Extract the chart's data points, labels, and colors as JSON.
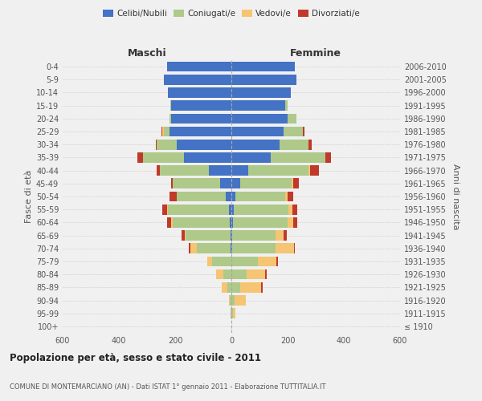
{
  "age_groups": [
    "100+",
    "95-99",
    "90-94",
    "85-89",
    "80-84",
    "75-79",
    "70-74",
    "65-69",
    "60-64",
    "55-59",
    "50-54",
    "45-49",
    "40-44",
    "35-39",
    "30-34",
    "25-29",
    "20-24",
    "15-19",
    "10-14",
    "5-9",
    "0-4"
  ],
  "birth_years": [
    "≤ 1910",
    "1911-1915",
    "1916-1920",
    "1921-1925",
    "1926-1930",
    "1931-1935",
    "1936-1940",
    "1941-1945",
    "1946-1950",
    "1951-1955",
    "1956-1960",
    "1961-1965",
    "1966-1970",
    "1971-1975",
    "1976-1980",
    "1981-1985",
    "1986-1990",
    "1991-1995",
    "1996-2000",
    "2001-2005",
    "2006-2010"
  ],
  "males": {
    "celibe": [
      0,
      0,
      0,
      0,
      0,
      0,
      2,
      2,
      5,
      10,
      20,
      40,
      80,
      170,
      195,
      220,
      215,
      215,
      225,
      240,
      230
    ],
    "coniugato": [
      0,
      2,
      5,
      15,
      30,
      70,
      120,
      160,
      205,
      215,
      175,
      170,
      175,
      145,
      70,
      20,
      5,
      2,
      0,
      0,
      0
    ],
    "vedovo": [
      0,
      2,
      5,
      20,
      25,
      15,
      25,
      5,
      5,
      5,
      0,
      0,
      0,
      0,
      0,
      5,
      0,
      0,
      0,
      0,
      0
    ],
    "divorziato": [
      0,
      0,
      0,
      0,
      0,
      0,
      5,
      10,
      15,
      15,
      25,
      5,
      10,
      20,
      5,
      5,
      0,
      0,
      0,
      0,
      0
    ]
  },
  "females": {
    "nubile": [
      0,
      0,
      0,
      0,
      0,
      0,
      2,
      2,
      5,
      8,
      15,
      30,
      60,
      140,
      170,
      185,
      200,
      190,
      210,
      230,
      225
    ],
    "coniugata": [
      0,
      5,
      10,
      30,
      55,
      95,
      155,
      155,
      195,
      195,
      175,
      185,
      215,
      195,
      105,
      70,
      30,
      10,
      0,
      0,
      0
    ],
    "vedova": [
      0,
      10,
      40,
      75,
      65,
      65,
      65,
      30,
      20,
      15,
      10,
      5,
      5,
      0,
      0,
      0,
      0,
      0,
      0,
      0,
      0
    ],
    "divorziata": [
      0,
      0,
      0,
      5,
      5,
      5,
      5,
      10,
      15,
      15,
      20,
      20,
      30,
      20,
      10,
      5,
      0,
      0,
      0,
      0,
      0
    ]
  },
  "colors": {
    "celibe": "#4472c4",
    "coniugato": "#aec98a",
    "vedovo": "#f5c573",
    "divorziato": "#c0392b"
  },
  "xlim": 600,
  "title": "Popolazione per età, sesso e stato civile - 2011",
  "subtitle": "COMUNE DI MONTEMARCIANO (AN) - Dati ISTAT 1° gennaio 2011 - Elaborazione TUTTITALIA.IT",
  "ylabel": "Fasce di età",
  "ylabel_right": "Anni di nascita",
  "xlabel_left": "Maschi",
  "xlabel_right": "Femmine",
  "background_color": "#f0f0f0"
}
